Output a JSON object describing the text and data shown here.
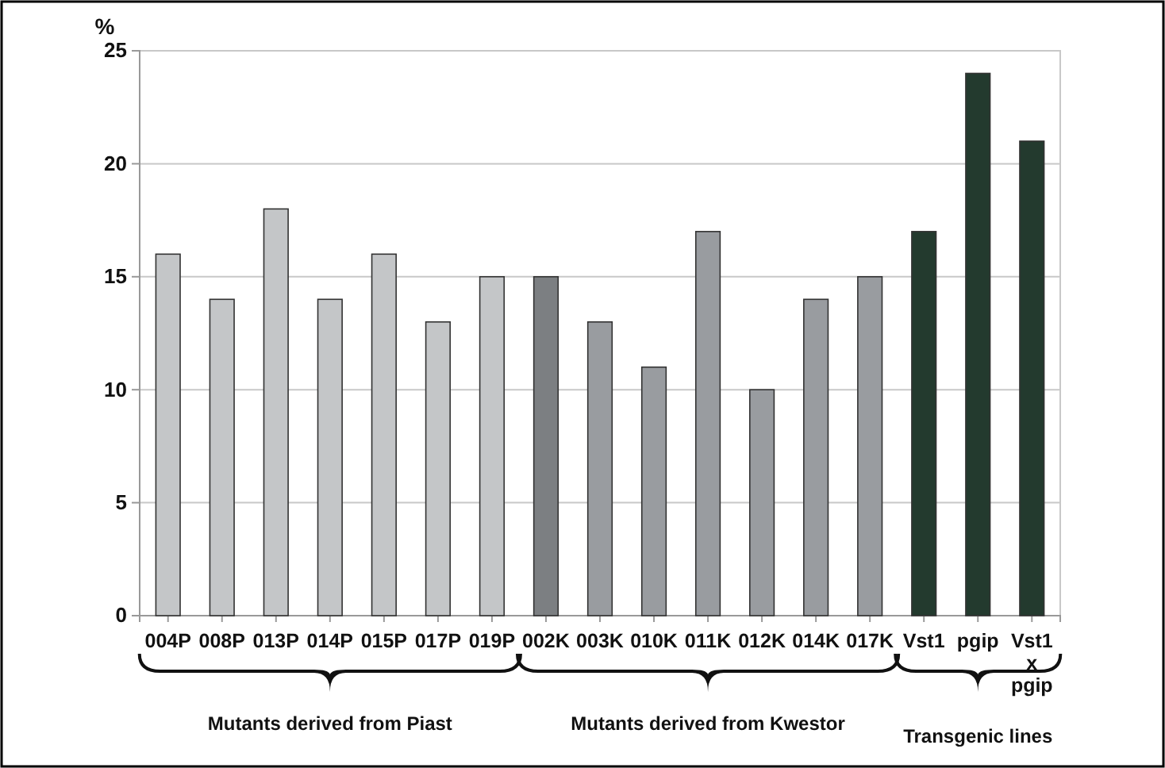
{
  "chart_data": {
    "type": "bar",
    "ylabel": "%",
    "categories": [
      "004P",
      "008P",
      "013P",
      "014P",
      "015P",
      "017P",
      "019P",
      "002K",
      "003K",
      "010K",
      "011K",
      "012K",
      "014K",
      "017K",
      "Vst1",
      "pgip",
      "Vst1\nx\npgip"
    ],
    "values": [
      16,
      14,
      18,
      14,
      16,
      13,
      15,
      15,
      13,
      11,
      17,
      10,
      14,
      15,
      17,
      24,
      21
    ],
    "colors": [
      "#c4c6c8",
      "#c4c6c8",
      "#c4c6c8",
      "#c4c6c8",
      "#c4c6c8",
      "#c4c6c8",
      "#c4c6c8",
      "#7c7f82",
      "#999ca0",
      "#999ca0",
      "#999ca0",
      "#999ca0",
      "#999ca0",
      "#999ca0",
      "#233a2e",
      "#233a2e",
      "#233a2e"
    ],
    "ylim": [
      0,
      25
    ],
    "yticks": [
      0,
      5,
      10,
      15,
      20,
      25
    ],
    "grid": "y",
    "annotations": [
      "Mutants derived from Piast",
      "Mutants derived from Kwestor",
      "Transgenic lines"
    ]
  }
}
